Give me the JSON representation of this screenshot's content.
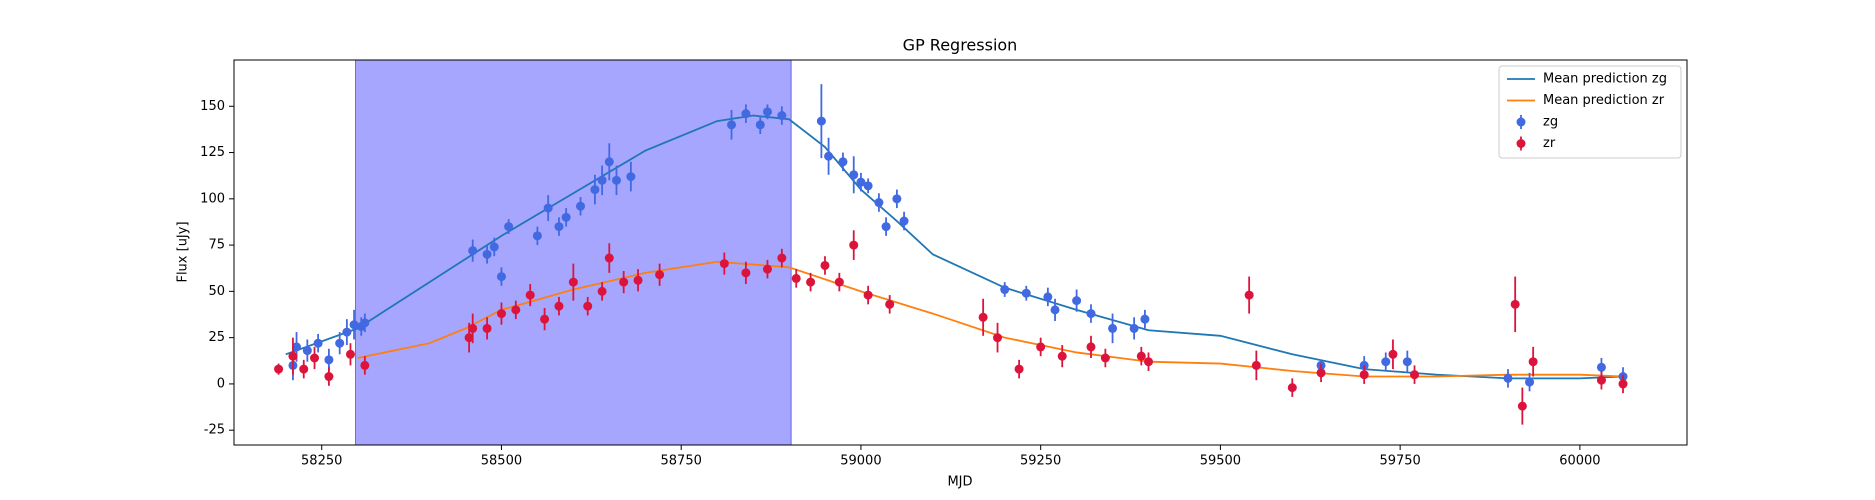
{
  "chart_data": {
    "type": "line",
    "title": "GP Regression",
    "x_label": "MJD",
    "y_label": "Flux [uJy]",
    "xlim": [
      58128,
      60149
    ],
    "ylim": [
      -33,
      175
    ],
    "xticks": [
      58250,
      58500,
      58750,
      59000,
      59250,
      59500,
      59750,
      60000
    ],
    "yticks": [
      -25,
      0,
      25,
      50,
      75,
      100,
      125,
      150
    ],
    "legend": "upper right",
    "shaded_span": {
      "x": [
        58297,
        58903
      ],
      "color": "#0000ff",
      "alpha": 0.35
    },
    "series": [
      {
        "name": "Mean prediction zg",
        "type": "line",
        "color": "#1f77b4",
        "x": [
          58200,
          58300,
          58400,
          58500,
          58600,
          58700,
          58800,
          58850,
          58900,
          58950,
          59000,
          59050,
          59100,
          59200,
          59300,
          59400,
          59500,
          59600,
          59700,
          59800,
          59900,
          60000,
          60060
        ],
        "values": [
          16,
          30,
          55,
          80,
          103,
          126,
          142,
          145,
          143,
          128,
          105,
          88,
          70,
          52,
          40,
          29,
          26,
          16,
          8,
          5,
          3,
          3,
          4
        ]
      },
      {
        "name": "Mean prediction zr",
        "type": "line",
        "color": "#ff7f0e",
        "x": [
          58300,
          58400,
          58450,
          58500,
          58600,
          58700,
          58800,
          58900,
          59000,
          59100,
          59200,
          59300,
          59400,
          59500,
          59600,
          59700,
          59800,
          59900,
          60000,
          60060
        ],
        "values": [
          14,
          22,
          30,
          40,
          51,
          60,
          66,
          63,
          50,
          38,
          25,
          17,
          12,
          11,
          7,
          4,
          4,
          5,
          5,
          4
        ]
      },
      {
        "name": "zg",
        "type": "errorbar",
        "color": "#4169e1",
        "x": [
          58210,
          58215,
          58230,
          58245,
          58260,
          58275,
          58285,
          58295,
          58305,
          58310,
          58460,
          58480,
          58490,
          58500,
          58510,
          58550,
          58565,
          58580,
          58590,
          58610,
          58630,
          58640,
          58650,
          58660,
          58680,
          58820,
          58840,
          58860,
          58870,
          58890,
          58945,
          58955,
          58975,
          58990,
          59000,
          59010,
          59025,
          59035,
          59050,
          59060,
          59200,
          59230,
          59260,
          59270,
          59300,
          59320,
          59350,
          59380,
          59395,
          59640,
          59700,
          59730,
          59760,
          59900,
          59930,
          60030,
          60060
        ],
        "values": [
          10,
          20,
          18,
          22,
          13,
          22,
          28,
          32,
          31,
          33,
          72,
          70,
          74,
          58,
          85,
          80,
          95,
          85,
          90,
          96,
          105,
          110,
          120,
          110,
          112,
          140,
          146,
          140,
          147,
          145,
          142,
          123,
          120,
          113,
          109,
          107,
          98,
          85,
          100,
          88,
          51,
          49,
          47,
          40,
          45,
          38,
          30,
          30,
          35,
          10,
          10,
          12,
          12,
          3,
          1,
          9,
          4
        ],
        "errors": [
          8,
          8,
          6,
          5,
          6,
          6,
          7,
          8,
          5,
          5,
          6,
          5,
          5,
          5,
          4,
          5,
          7,
          5,
          5,
          5,
          8,
          8,
          10,
          8,
          8,
          8,
          5,
          5,
          4,
          5,
          20,
          10,
          5,
          10,
          5,
          4,
          5,
          5,
          5,
          5,
          4,
          4,
          5,
          6,
          6,
          5,
          8,
          6,
          5,
          3,
          5,
          5,
          6,
          5,
          5,
          5,
          5
        ]
      },
      {
        "name": "zr",
        "type": "errorbar",
        "color": "#dc143c",
        "x": [
          58190,
          58210,
          58225,
          58240,
          58260,
          58290,
          58310,
          58455,
          58460,
          58480,
          58500,
          58520,
          58540,
          58560,
          58580,
          58600,
          58620,
          58640,
          58650,
          58670,
          58690,
          58720,
          58810,
          58840,
          58870,
          58890,
          58910,
          58930,
          58950,
          58970,
          58990,
          59010,
          59040,
          59170,
          59190,
          59220,
          59250,
          59280,
          59320,
          59340,
          59390,
          59400,
          59540,
          59550,
          59600,
          59640,
          59700,
          59740,
          59770,
          59910,
          59920,
          59935,
          60030,
          60060
        ],
        "values": [
          8,
          15,
          8,
          14,
          4,
          16,
          10,
          25,
          30,
          30,
          38,
          40,
          48,
          35,
          42,
          55,
          42,
          50,
          68,
          55,
          56,
          59,
          65,
          60,
          62,
          68,
          57,
          55,
          64,
          55,
          75,
          48,
          43,
          36,
          25,
          8,
          20,
          15,
          20,
          14,
          15,
          12,
          48,
          10,
          -2,
          6,
          5,
          16,
          5,
          43,
          -12,
          12,
          2,
          0
        ],
        "errors": [
          3,
          10,
          5,
          6,
          5,
          6,
          5,
          8,
          8,
          6,
          6,
          5,
          6,
          6,
          5,
          10,
          5,
          5,
          8,
          6,
          6,
          6,
          6,
          6,
          5,
          5,
          5,
          5,
          5,
          5,
          8,
          5,
          5,
          10,
          8,
          5,
          5,
          6,
          6,
          5,
          5,
          5,
          10,
          8,
          5,
          5,
          5,
          8,
          5,
          15,
          10,
          8,
          5,
          5
        ]
      }
    ]
  }
}
